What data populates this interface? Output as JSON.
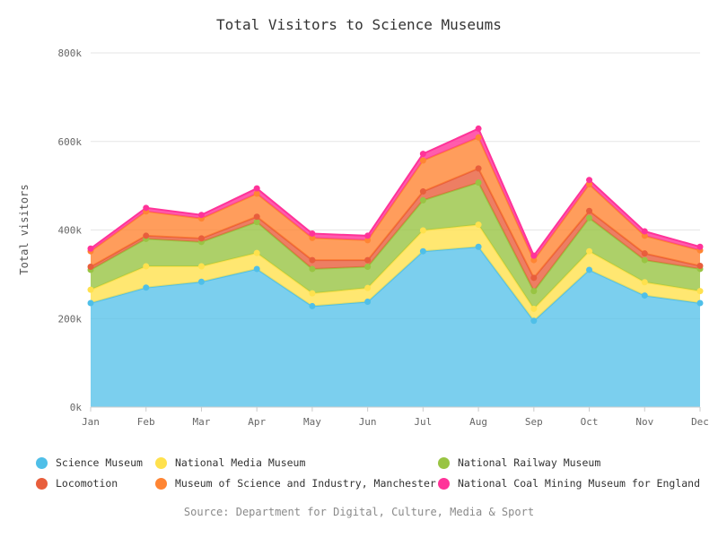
{
  "chart_data": {
    "type": "area",
    "stacked": true,
    "title": "Total Visitors to Science Museums",
    "xlabel": "",
    "ylabel": "Total visitors",
    "ylim": [
      0,
      800000
    ],
    "yticks": [
      {
        "value": 0,
        "label": "0k"
      },
      {
        "value": 200000,
        "label": "200k"
      },
      {
        "value": 400000,
        "label": "400k"
      },
      {
        "value": 600000,
        "label": "600k"
      },
      {
        "value": 800000,
        "label": "800k"
      }
    ],
    "grid": true,
    "legend_position": "bottom",
    "categories": [
      "Jan",
      "Feb",
      "Mar",
      "Apr",
      "May",
      "Jun",
      "Jul",
      "Aug",
      "Sep",
      "Oct",
      "Nov",
      "Dec"
    ],
    "series": [
      {
        "name": "Science Museum",
        "color": "#4fbfe8",
        "values": [
          235000,
          270000,
          283000,
          312000,
          228000,
          238000,
          352000,
          362000,
          195000,
          310000,
          252000,
          235000
        ]
      },
      {
        "name": "National Media Museum",
        "color": "#ffe14d",
        "values": [
          30000,
          48000,
          35000,
          36000,
          29000,
          31000,
          47000,
          50000,
          27000,
          42000,
          30000,
          27000
        ]
      },
      {
        "name": "National Railway Museum",
        "color": "#99c443",
        "values": [
          45000,
          62000,
          55000,
          70000,
          55000,
          48000,
          68000,
          95000,
          40000,
          75000,
          50000,
          50000
        ]
      },
      {
        "name": "Locomotion",
        "color": "#e85e3c",
        "values": [
          7000,
          7000,
          8000,
          12000,
          20000,
          15000,
          20000,
          32000,
          30000,
          16000,
          15000,
          7000
        ]
      },
      {
        "name": "Museum of Science and Industry, Manchester",
        "color": "#ff8533",
        "values": [
          35000,
          55000,
          45000,
          52000,
          50000,
          45000,
          70000,
          70000,
          40000,
          60000,
          40000,
          35000
        ]
      },
      {
        "name": "National Coal Mining Museum for England",
        "color": "#ff3399",
        "values": [
          6000,
          8000,
          8000,
          12000,
          10000,
          10000,
          15000,
          20000,
          10000,
          10000,
          10000,
          8000
        ]
      }
    ],
    "source": "Source: Department for Digital, Culture, Media & Sport"
  }
}
